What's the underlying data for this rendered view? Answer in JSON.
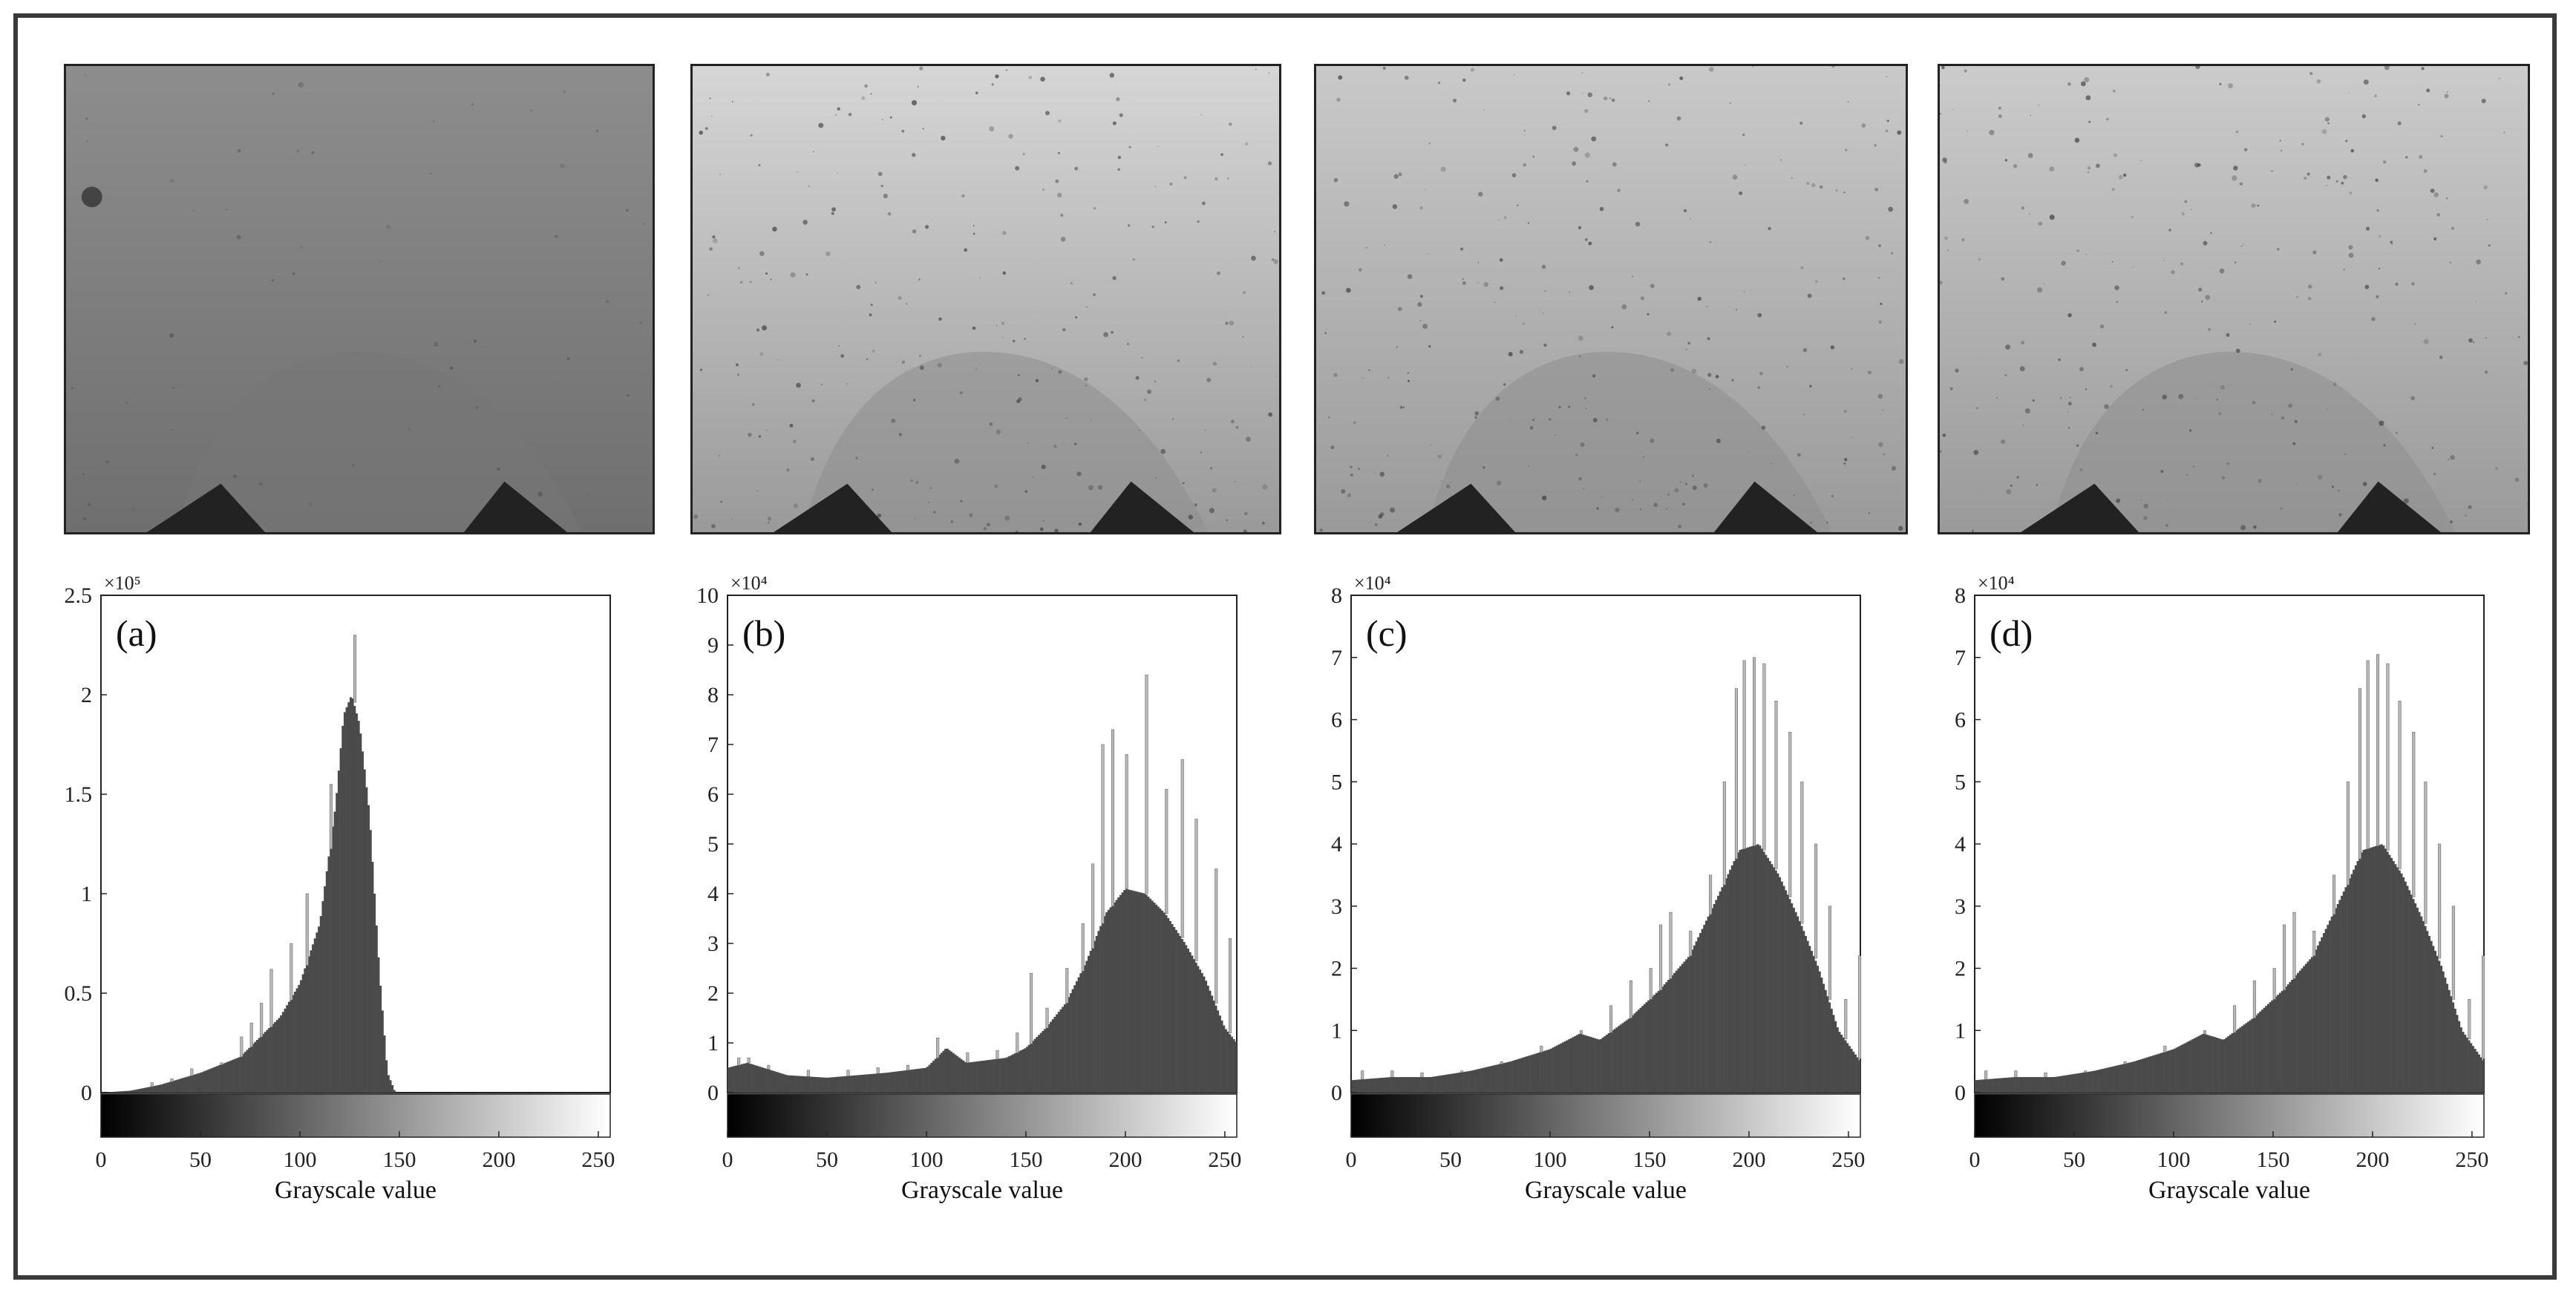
{
  "chart_data": [
    {
      "type": "bar",
      "panel": "(a)",
      "xlabel": "Grayscale value",
      "ylabel": "",
      "xlim": [
        0,
        256
      ],
      "ylim": [
        0,
        2.5
      ],
      "y_multiplier": "×10⁵",
      "x_ticks": [
        0,
        50,
        100,
        150,
        200,
        250
      ],
      "y_ticks": [
        0,
        0.5,
        1,
        1.5,
        2,
        2.5
      ],
      "histogram_profile": [
        [
          0,
          0
        ],
        [
          15,
          0.01
        ],
        [
          30,
          0.04
        ],
        [
          50,
          0.1
        ],
        [
          70,
          0.18
        ],
        [
          90,
          0.38
        ],
        [
          100,
          0.55
        ],
        [
          110,
          0.85
        ],
        [
          118,
          1.45
        ],
        [
          122,
          1.9
        ],
        [
          126,
          2.0
        ],
        [
          130,
          1.85
        ],
        [
          135,
          1.4
        ],
        [
          140,
          0.6
        ],
        [
          144,
          0.1
        ],
        [
          148,
          0
        ],
        [
          256,
          0
        ]
      ],
      "spikes": [
        [
          25,
          0.05
        ],
        [
          35,
          0.07
        ],
        [
          45,
          0.12
        ],
        [
          60,
          0.15
        ],
        [
          70,
          0.28
        ],
        [
          75,
          0.35
        ],
        [
          80,
          0.45
        ],
        [
          85,
          0.62
        ],
        [
          95,
          0.75
        ],
        [
          103,
          1.0
        ],
        [
          115,
          1.55
        ],
        [
          127,
          2.3
        ]
      ]
    },
    {
      "type": "bar",
      "panel": "(b)",
      "xlabel": "Grayscale value",
      "ylabel": "",
      "xlim": [
        0,
        256
      ],
      "ylim": [
        0,
        10
      ],
      "y_multiplier": "×10⁴",
      "x_ticks": [
        0,
        50,
        100,
        150,
        200,
        250
      ],
      "y_ticks": [
        0,
        1,
        2,
        3,
        4,
        5,
        6,
        7,
        8,
        9,
        10
      ],
      "histogram_profile": [
        [
          0,
          0.5
        ],
        [
          10,
          0.6
        ],
        [
          30,
          0.35
        ],
        [
          50,
          0.3
        ],
        [
          80,
          0.4
        ],
        [
          100,
          0.5
        ],
        [
          110,
          0.9
        ],
        [
          120,
          0.6
        ],
        [
          140,
          0.7
        ],
        [
          150,
          0.9
        ],
        [
          160,
          1.3
        ],
        [
          170,
          1.8
        ],
        [
          180,
          2.6
        ],
        [
          190,
          3.6
        ],
        [
          200,
          4.1
        ],
        [
          210,
          4.0
        ],
        [
          220,
          3.6
        ],
        [
          230,
          3.0
        ],
        [
          240,
          2.3
        ],
        [
          250,
          1.3
        ],
        [
          256,
          1.0
        ]
      ],
      "spikes": [
        [
          5,
          0.7
        ],
        [
          10,
          0.7
        ],
        [
          20,
          0.55
        ],
        [
          40,
          0.45
        ],
        [
          60,
          0.45
        ],
        [
          75,
          0.5
        ],
        [
          90,
          0.55
        ],
        [
          105,
          1.1
        ],
        [
          120,
          0.8
        ],
        [
          135,
          0.85
        ],
        [
          145,
          1.2
        ],
        [
          152,
          2.4
        ],
        [
          160,
          1.7
        ],
        [
          170,
          2.5
        ],
        [
          178,
          3.4
        ],
        [
          183,
          4.6
        ],
        [
          188,
          7.0
        ],
        [
          193,
          7.3
        ],
        [
          200,
          6.8
        ],
        [
          210,
          8.4
        ],
        [
          220,
          6.1
        ],
        [
          228,
          6.7
        ],
        [
          235,
          5.5
        ],
        [
          245,
          4.5
        ],
        [
          252,
          3.1
        ]
      ]
    },
    {
      "type": "bar",
      "panel": "(c)",
      "xlabel": "Grayscale value",
      "ylabel": "",
      "xlim": [
        0,
        256
      ],
      "ylim": [
        0,
        8
      ],
      "y_multiplier": "×10⁴",
      "x_ticks": [
        0,
        50,
        100,
        150,
        200,
        250
      ],
      "y_ticks": [
        0,
        1,
        2,
        3,
        4,
        5,
        6,
        7,
        8
      ],
      "histogram_profile": [
        [
          0,
          0.2
        ],
        [
          20,
          0.25
        ],
        [
          40,
          0.25
        ],
        [
          60,
          0.35
        ],
        [
          80,
          0.5
        ],
        [
          100,
          0.7
        ],
        [
          115,
          0.95
        ],
        [
          125,
          0.85
        ],
        [
          140,
          1.2
        ],
        [
          155,
          1.65
        ],
        [
          170,
          2.2
        ],
        [
          185,
          3.2
        ],
        [
          195,
          3.9
        ],
        [
          205,
          4.0
        ],
        [
          215,
          3.5
        ],
        [
          225,
          2.8
        ],
        [
          235,
          2.0
        ],
        [
          245,
          1.0
        ],
        [
          256,
          0.5
        ]
      ],
      "spikes": [
        [
          5,
          0.35
        ],
        [
          20,
          0.35
        ],
        [
          35,
          0.32
        ],
        [
          55,
          0.35
        ],
        [
          75,
          0.5
        ],
        [
          95,
          0.75
        ],
        [
          115,
          1.0
        ],
        [
          130,
          1.4
        ],
        [
          140,
          1.8
        ],
        [
          150,
          2.0
        ],
        [
          155,
          2.7
        ],
        [
          160,
          2.9
        ],
        [
          170,
          2.6
        ],
        [
          180,
          3.5
        ],
        [
          187,
          5.0
        ],
        [
          193,
          6.5
        ],
        [
          197,
          6.95
        ],
        [
          202,
          7.0
        ],
        [
          207,
          6.9
        ],
        [
          213,
          6.3
        ],
        [
          220,
          5.8
        ],
        [
          226,
          5.0
        ],
        [
          233,
          4.0
        ],
        [
          240,
          3.0
        ],
        [
          248,
          1.5
        ],
        [
          255,
          2.2
        ]
      ]
    },
    {
      "type": "bar",
      "panel": "(d)",
      "xlabel": "Grayscale value",
      "ylabel": "",
      "xlim": [
        0,
        256
      ],
      "ylim": [
        0,
        8
      ],
      "y_multiplier": "×10⁴",
      "x_ticks": [
        0,
        50,
        100,
        150,
        200,
        250
      ],
      "y_ticks": [
        0,
        1,
        2,
        3,
        4,
        5,
        6,
        7,
        8
      ],
      "histogram_profile": [
        [
          0,
          0.2
        ],
        [
          20,
          0.25
        ],
        [
          40,
          0.25
        ],
        [
          60,
          0.35
        ],
        [
          80,
          0.5
        ],
        [
          100,
          0.7
        ],
        [
          115,
          0.95
        ],
        [
          125,
          0.85
        ],
        [
          140,
          1.2
        ],
        [
          155,
          1.65
        ],
        [
          170,
          2.2
        ],
        [
          185,
          3.2
        ],
        [
          195,
          3.9
        ],
        [
          205,
          4.0
        ],
        [
          215,
          3.5
        ],
        [
          225,
          2.8
        ],
        [
          235,
          2.0
        ],
        [
          245,
          1.0
        ],
        [
          256,
          0.5
        ]
      ],
      "spikes": [
        [
          5,
          0.35
        ],
        [
          20,
          0.35
        ],
        [
          35,
          0.32
        ],
        [
          55,
          0.35
        ],
        [
          75,
          0.5
        ],
        [
          95,
          0.75
        ],
        [
          115,
          1.0
        ],
        [
          130,
          1.4
        ],
        [
          140,
          1.8
        ],
        [
          150,
          2.0
        ],
        [
          155,
          2.7
        ],
        [
          160,
          2.9
        ],
        [
          170,
          2.6
        ],
        [
          180,
          3.5
        ],
        [
          187,
          5.0
        ],
        [
          193,
          6.5
        ],
        [
          197,
          6.95
        ],
        [
          202,
          7.05
        ],
        [
          207,
          6.9
        ],
        [
          213,
          6.3
        ],
        [
          220,
          5.8
        ],
        [
          226,
          5.0
        ],
        [
          233,
          4.0
        ],
        [
          240,
          3.0
        ],
        [
          248,
          1.5
        ],
        [
          255,
          2.2
        ]
      ]
    }
  ],
  "images": [
    {
      "name": "original-image",
      "tone": "#8d8d8d"
    },
    {
      "name": "enhanced-image-b",
      "tone": "#d6d6d6"
    },
    {
      "name": "enhanced-image-c",
      "tone": "#c9c9c9"
    },
    {
      "name": "enhanced-image-d",
      "tone": "#cbcbcb"
    }
  ]
}
